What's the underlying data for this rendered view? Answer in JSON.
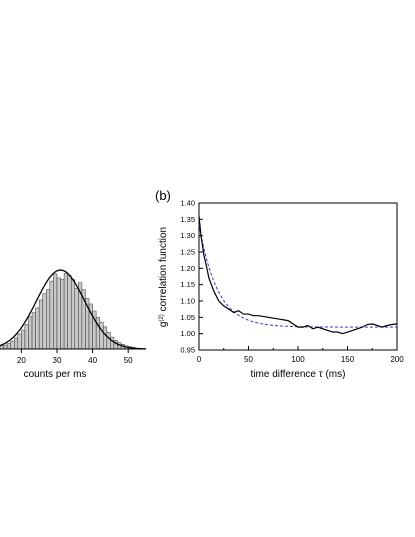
{
  "panel_a": {
    "xlabel": "counts per ms"
  },
  "panel_b": {
    "panel_label": "(b)",
    "ylabel_prefix": "g",
    "ylabel_superscript": "(2)",
    "ylabel_suffix": " correlation function",
    "xlabel": "time difference τ (ms)"
  },
  "chart_data": [
    {
      "type": "bar",
      "xlabel": "counts per ms",
      "ylabel": "",
      "xlim": [
        14,
        55
      ],
      "ylim": [
        0,
        1.0
      ],
      "xticks": [
        20,
        30,
        40,
        50
      ],
      "bins_x": [
        14,
        15,
        16,
        17,
        18,
        19,
        20,
        21,
        22,
        23,
        24,
        25,
        26,
        27,
        28,
        29,
        30,
        31,
        32,
        33,
        34,
        35,
        36,
        37,
        38,
        39,
        40,
        41,
        42,
        43,
        44,
        45,
        46,
        47,
        48,
        49,
        50,
        51,
        52
      ],
      "values": [
        0.04,
        0.05,
        0.07,
        0.1,
        0.14,
        0.19,
        0.24,
        0.31,
        0.41,
        0.46,
        0.52,
        0.62,
        0.7,
        0.75,
        0.86,
        0.95,
        0.9,
        0.88,
        0.96,
        0.93,
        0.88,
        0.77,
        0.84,
        0.75,
        0.64,
        0.57,
        0.48,
        0.4,
        0.34,
        0.28,
        0.21,
        0.15,
        0.11,
        0.08,
        0.06,
        0.04,
        0.03,
        0.02,
        0.01
      ],
      "fit": {
        "type": "gaussian",
        "mean": 31,
        "sigma": 6.8,
        "amplitude": 1.0
      },
      "colors": {
        "bars": "#c8c8c8",
        "fit": "#000000"
      }
    },
    {
      "type": "line",
      "title": "",
      "xlabel": "time difference τ (ms)",
      "ylabel": "g(2) correlation function",
      "xlim": [
        0,
        200
      ],
      "ylim": [
        0.95,
        1.4
      ],
      "xticks": [
        0,
        50,
        100,
        150,
        200
      ],
      "yticks": [
        "0.95",
        "1.00",
        "1.05",
        "1.10",
        "1.15",
        "1.20",
        "1.25",
        "1.30",
        "1.35",
        "1.40"
      ],
      "series": [
        {
          "style": "solid",
          "color": "#000000",
          "x": [
            0,
            2,
            5,
            8,
            10,
            15,
            20,
            25,
            30,
            35,
            40,
            45,
            50,
            55,
            60,
            70,
            80,
            90,
            100,
            105,
            110,
            115,
            120,
            125,
            130,
            135,
            140,
            145,
            150,
            155,
            160,
            165,
            170,
            175,
            180,
            185,
            190,
            195,
            200
          ],
          "y": [
            1.36,
            1.3,
            1.24,
            1.2,
            1.17,
            1.13,
            1.1,
            1.085,
            1.075,
            1.065,
            1.07,
            1.06,
            1.06,
            1.055,
            1.055,
            1.05,
            1.045,
            1.04,
            1.02,
            1.02,
            1.025,
            1.015,
            1.02,
            1.015,
            1.01,
            1.005,
            1.005,
            1.0,
            1.005,
            1.01,
            1.015,
            1.02,
            1.028,
            1.03,
            1.025,
            1.02,
            1.025,
            1.028,
            1.03
          ]
        },
        {
          "style": "dashed",
          "color": "#3a3ad0",
          "fit": {
            "type": "exponential",
            "offset": 1.02,
            "amplitude": 0.315,
            "tau": 18.5
          }
        }
      ]
    }
  ]
}
